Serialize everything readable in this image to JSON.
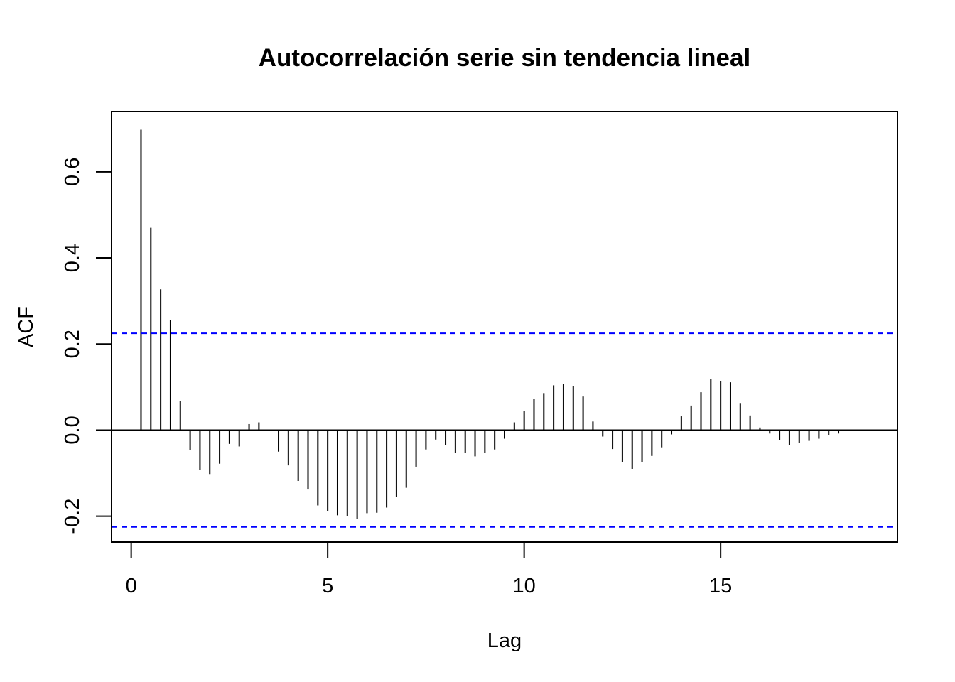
{
  "chart_data": {
    "type": "bar",
    "title": "Autocorrelación serie sin tendencia lineal",
    "xlabel": "Lag",
    "ylabel": "ACF",
    "xlim": [
      -0.5,
      19.5
    ],
    "ylim": [
      -0.26,
      0.74
    ],
    "x_ticks": [
      0,
      5,
      10,
      15
    ],
    "x_tick_labels": [
      "0",
      "5",
      "10",
      "15"
    ],
    "y_ticks": [
      -0.2,
      0.0,
      0.2,
      0.4,
      0.6
    ],
    "y_tick_labels": [
      "-0.2",
      "0.0",
      "0.2",
      "0.4",
      "0.6"
    ],
    "grid": false,
    "legend": "none",
    "colors": {
      "bars": "#000000",
      "zero_line": "#000000",
      "confidence_lines": "#0000ff"
    },
    "confidence_limits": [
      0.225,
      -0.225
    ],
    "lag_step": 0.25,
    "series": [
      {
        "lags": [
          0.25,
          0.5,
          0.75,
          1.0,
          1.25,
          1.5,
          1.75,
          2.0,
          2.25,
          2.5,
          2.75,
          3.0,
          3.25,
          3.5,
          3.75,
          4.0,
          4.25,
          4.5,
          4.75,
          5.0,
          5.25,
          5.5,
          5.75,
          6.0,
          6.25,
          6.5,
          6.75,
          7.0,
          7.25,
          7.5,
          7.75,
          8.0,
          8.25,
          8.5,
          8.75,
          9.0,
          9.25,
          9.5,
          9.75,
          10.0,
          10.25,
          10.5,
          10.75,
          11.0,
          11.25,
          11.5,
          11.75,
          12.0,
          12.25,
          12.5,
          12.75,
          13.0,
          13.25,
          13.5,
          13.75,
          14.0,
          14.25,
          14.5,
          14.75,
          15.0,
          15.25,
          15.5,
          15.75,
          16.0,
          16.25,
          16.5,
          16.75,
          17.0,
          17.25,
          17.5,
          17.75,
          18.0
        ],
        "values": [
          0.698,
          0.47,
          0.327,
          0.256,
          0.068,
          -0.046,
          -0.092,
          -0.102,
          -0.078,
          -0.032,
          -0.038,
          0.014,
          0.018,
          -0.002,
          -0.05,
          -0.082,
          -0.118,
          -0.138,
          -0.175,
          -0.188,
          -0.198,
          -0.2,
          -0.207,
          -0.193,
          -0.192,
          -0.18,
          -0.155,
          -0.134,
          -0.085,
          -0.045,
          -0.022,
          -0.035,
          -0.053,
          -0.053,
          -0.061,
          -0.053,
          -0.045,
          -0.02,
          0.018,
          0.045,
          0.072,
          0.086,
          0.104,
          0.108,
          0.103,
          0.078,
          0.02,
          -0.015,
          -0.044,
          -0.075,
          -0.09,
          -0.075,
          -0.06,
          -0.04,
          -0.01,
          0.032,
          0.057,
          0.088,
          0.118,
          0.114,
          0.111,
          0.063,
          0.034,
          0.006,
          -0.008,
          -0.024,
          -0.034,
          -0.03,
          -0.025,
          -0.02,
          -0.012,
          -0.008
        ]
      }
    ]
  }
}
